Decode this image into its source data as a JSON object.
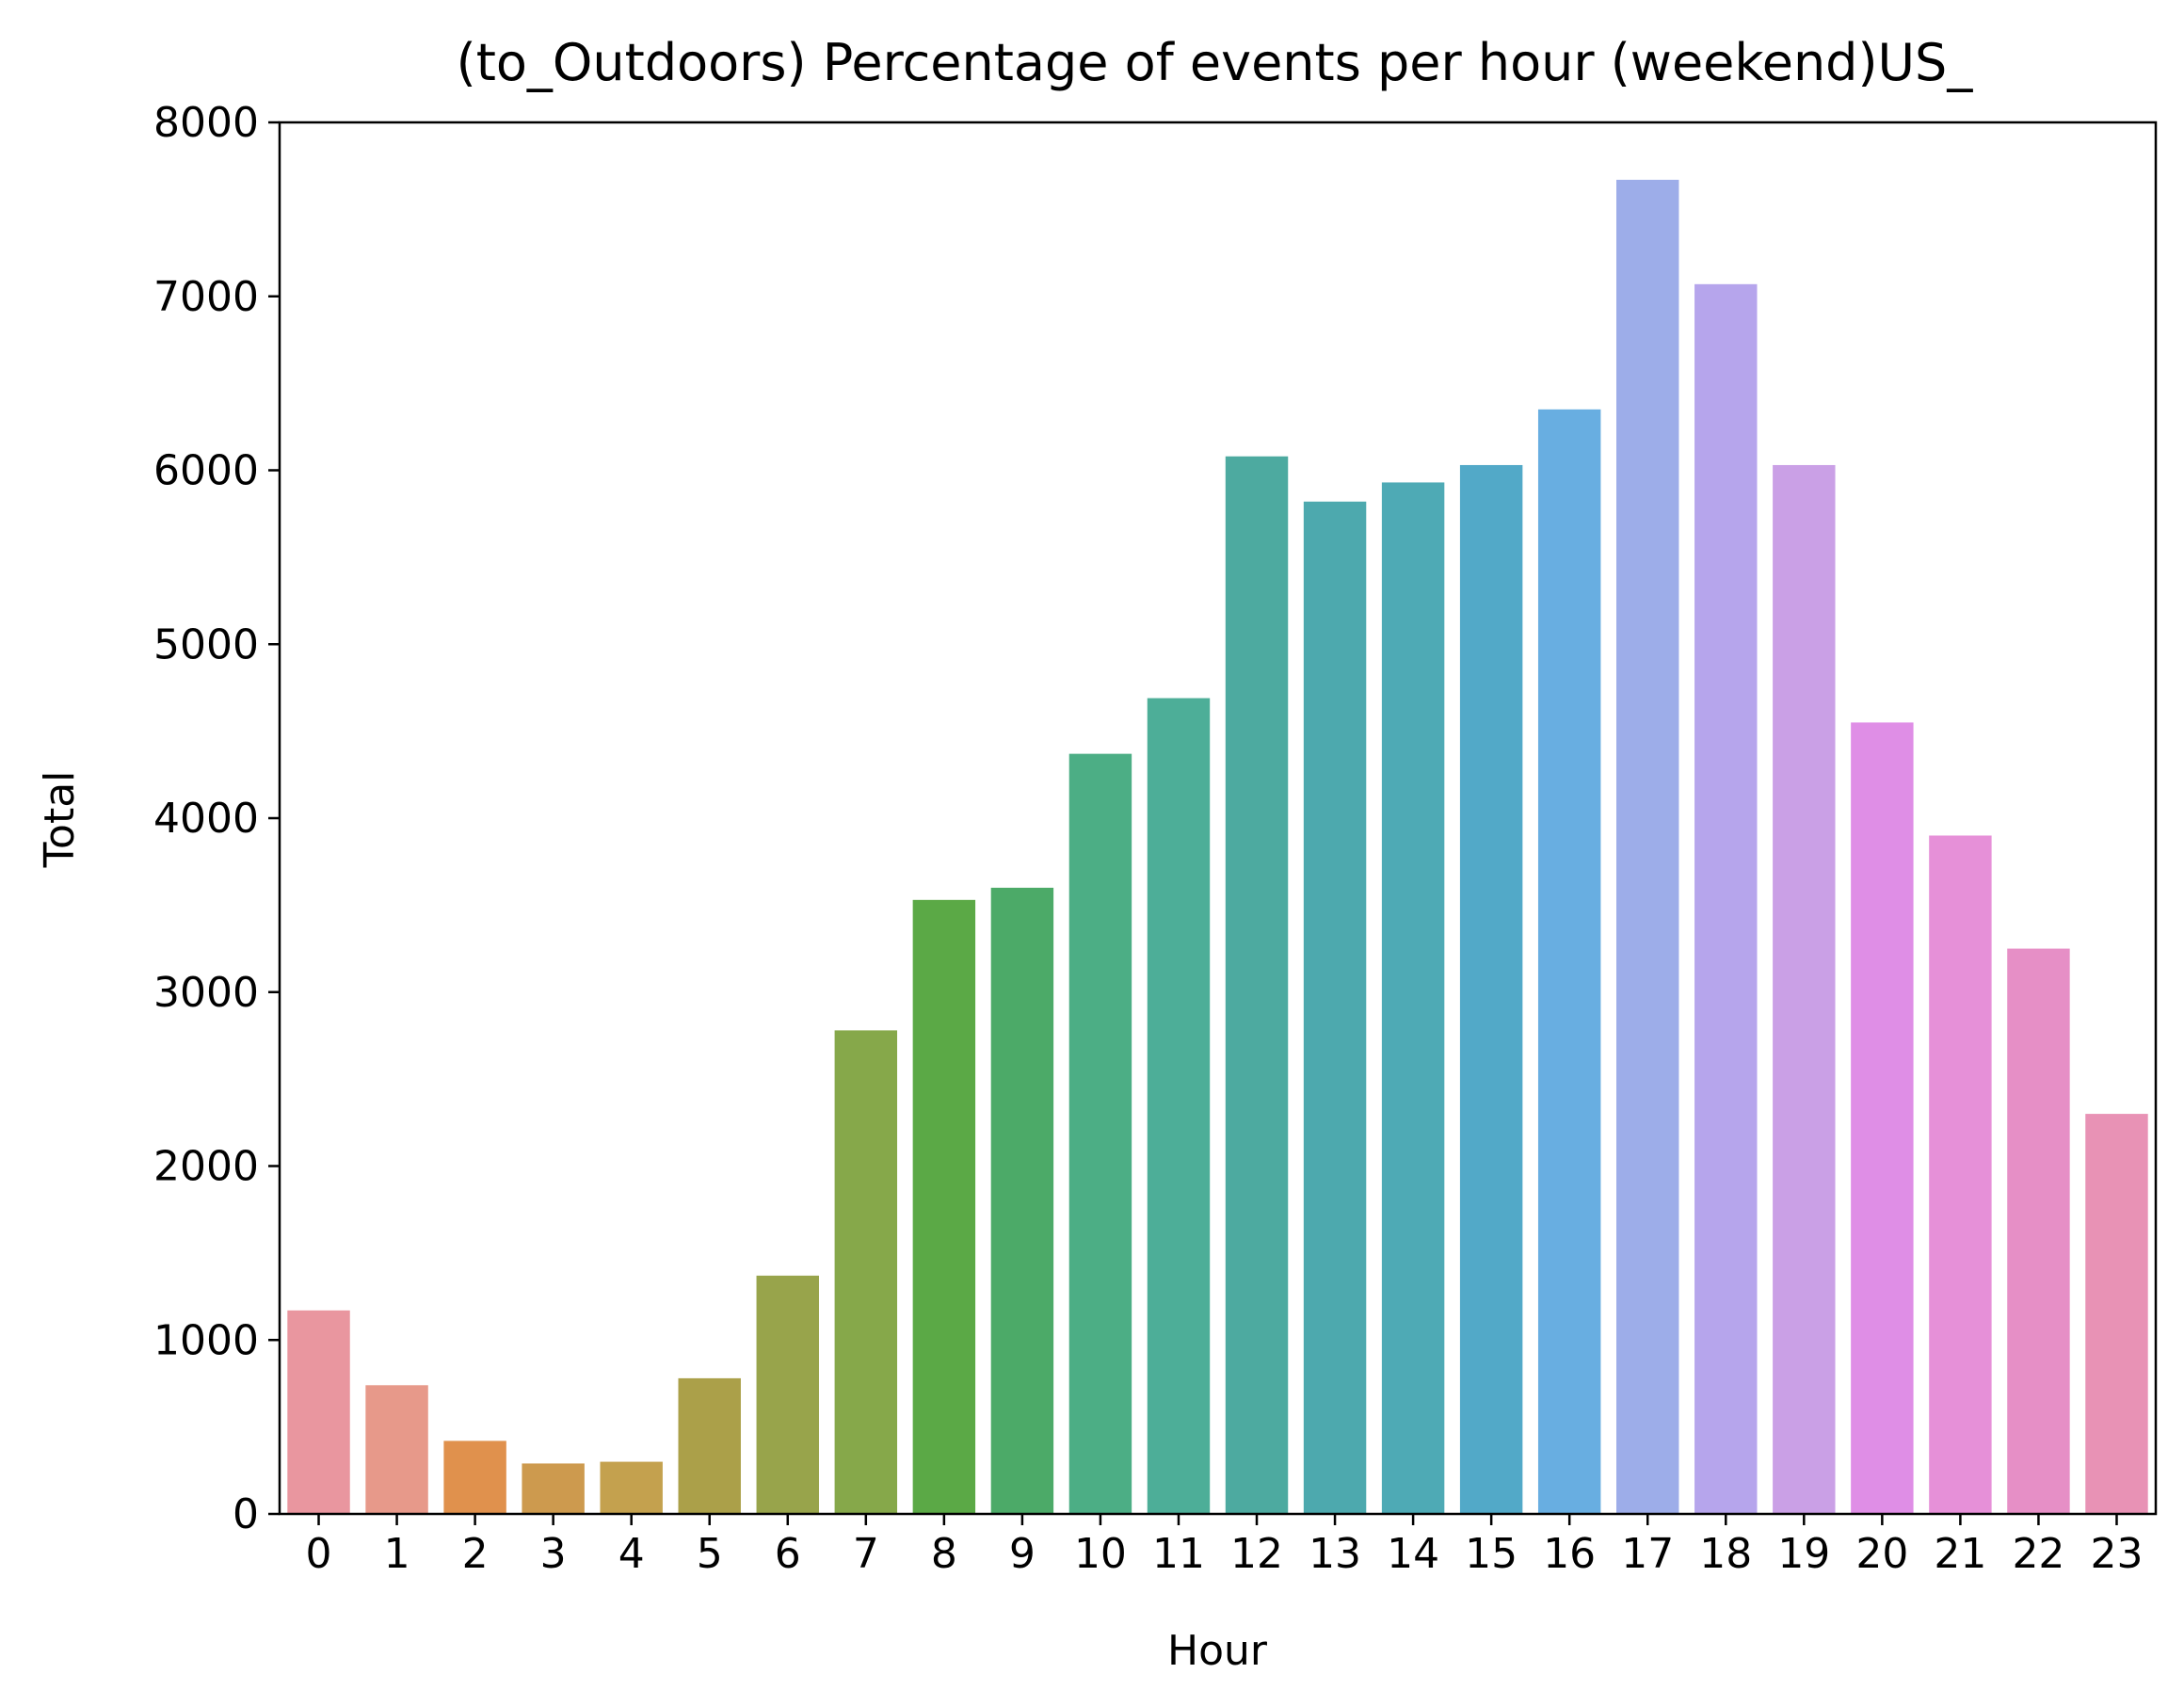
{
  "chart_data": {
    "type": "bar",
    "title": "(to_Outdoors) Percentage of events per hour (weekend)US_",
    "xlabel": "Hour",
    "ylabel": "Total",
    "ylim": [
      0,
      8000
    ],
    "yticks": [
      0,
      1000,
      2000,
      3000,
      4000,
      5000,
      6000,
      7000,
      8000
    ],
    "grid": false,
    "legend": "none",
    "categories": [
      "0",
      "1",
      "2",
      "3",
      "4",
      "5",
      "6",
      "7",
      "8",
      "9",
      "10",
      "11",
      "12",
      "13",
      "14",
      "15",
      "16",
      "17",
      "18",
      "19",
      "20",
      "21",
      "22",
      "23"
    ],
    "values": [
      1170,
      740,
      420,
      290,
      300,
      780,
      1370,
      2780,
      3530,
      3600,
      4370,
      4690,
      6080,
      5820,
      5930,
      6030,
      6350,
      7670,
      7070,
      6030,
      4550,
      3900,
      3250,
      2300
    ],
    "colors": [
      "#e9969f",
      "#e7998a",
      "#e0914d",
      "#cd9a4e",
      "#c4a14e",
      "#aba049",
      "#98a44b",
      "#86a84a",
      "#5ba946",
      "#4caa68",
      "#4cae85",
      "#4dae98",
      "#4daaa0",
      "#4da9ae",
      "#4eaab5",
      "#52a9c8",
      "#68aee1",
      "#9dade9",
      "#b6a5ec",
      "#caa0e6",
      "#df8ee6",
      "#e690d8",
      "#e68fc6",
      "#e892b5"
    ]
  }
}
